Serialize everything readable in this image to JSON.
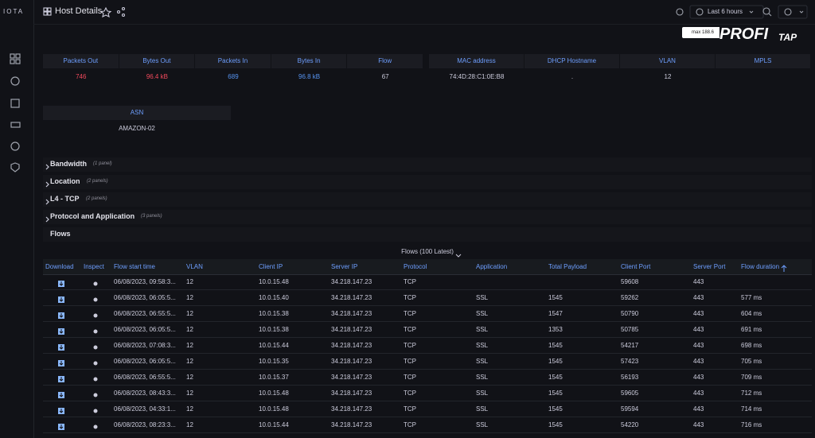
{
  "sidebar": {
    "logo": "IOTA"
  },
  "header": {
    "title": "Host Details",
    "time_range": "Last 6 hours",
    "badge": "max 188.6",
    "brand": [
      "PROFI",
      "TAP"
    ]
  },
  "stats_traffic": {
    "headers": [
      "Packets Out",
      "Bytes Out",
      "Packets In",
      "Bytes In",
      "Flow"
    ],
    "values": [
      "746",
      "96.4 kB",
      "689",
      "96.8 kB",
      "67"
    ]
  },
  "stats_host": {
    "headers": [
      "MAC address",
      "DHCP Hostname",
      "VLAN",
      "MPLS"
    ],
    "values": [
      "74:4D:28:C1:0E:B8",
      ".",
      "12",
      null
    ]
  },
  "asn": {
    "header": "ASN",
    "value": "AMAZON-02"
  },
  "rows": [
    {
      "title": "Bandwidth",
      "note": "(1 panel)"
    },
    {
      "title": "Location",
      "note": "(2 panels)"
    },
    {
      "title": "L4 - TCP",
      "note": "(2 panels)"
    },
    {
      "title": "Protocol and Application",
      "note": "(3 panels)"
    },
    {
      "title": "Flows"
    }
  ],
  "flows_table": {
    "title": "Flows (100 Latest)",
    "columns": [
      "Download",
      "Inspect",
      "Flow start time",
      "VLAN",
      "Client IP",
      "Server IP",
      "Protocol",
      "Application",
      "Total Payload",
      "Client Port",
      "Server Port",
      "Flow duration"
    ],
    "rows": [
      [
        "06/08/2023, 09:58:3...",
        "12",
        "10.0.15.48",
        "34.218.147.23",
        "TCP",
        null,
        null,
        "59608",
        "443",
        null
      ],
      [
        "06/08/2023, 06:05:5...",
        "12",
        "10.0.15.40",
        "34.218.147.23",
        "TCP",
        "SSL",
        "1545",
        "59262",
        "443",
        "577 ms"
      ],
      [
        "06/08/2023, 06:55:5...",
        "12",
        "10.0.15.38",
        "34.218.147.23",
        "TCP",
        "SSL",
        "1547",
        "50790",
        "443",
        "604 ms"
      ],
      [
        "06/08/2023, 06:05:5...",
        "12",
        "10.0.15.38",
        "34.218.147.23",
        "TCP",
        "SSL",
        "1353",
        "50785",
        "443",
        "691 ms"
      ],
      [
        "06/08/2023, 07:08:3...",
        "12",
        "10.0.15.44",
        "34.218.147.23",
        "TCP",
        "SSL",
        "1545",
        "54217",
        "443",
        "698 ms"
      ],
      [
        "06/08/2023, 06:05:5...",
        "12",
        "10.0.15.35",
        "34.218.147.23",
        "TCP",
        "SSL",
        "1545",
        "57423",
        "443",
        "705 ms"
      ],
      [
        "06/08/2023, 06:55:5...",
        "12",
        "10.0.15.37",
        "34.218.147.23",
        "TCP",
        "SSL",
        "1545",
        "56193",
        "443",
        "709 ms"
      ],
      [
        "06/08/2023, 08:43:3...",
        "12",
        "10.0.15.48",
        "34.218.147.23",
        "TCP",
        "SSL",
        "1545",
        "59605",
        "443",
        "712 ms"
      ],
      [
        "06/08/2023, 04:33:1...",
        "12",
        "10.0.15.48",
        "34.218.147.23",
        "TCP",
        "SSL",
        "1545",
        "59594",
        "443",
        "714 ms"
      ],
      [
        "06/08/2023, 08:23:3...",
        "12",
        "10.0.15.44",
        "34.218.147.23",
        "TCP",
        "SSL",
        "1545",
        "54220",
        "443",
        "716 ms"
      ]
    ]
  }
}
